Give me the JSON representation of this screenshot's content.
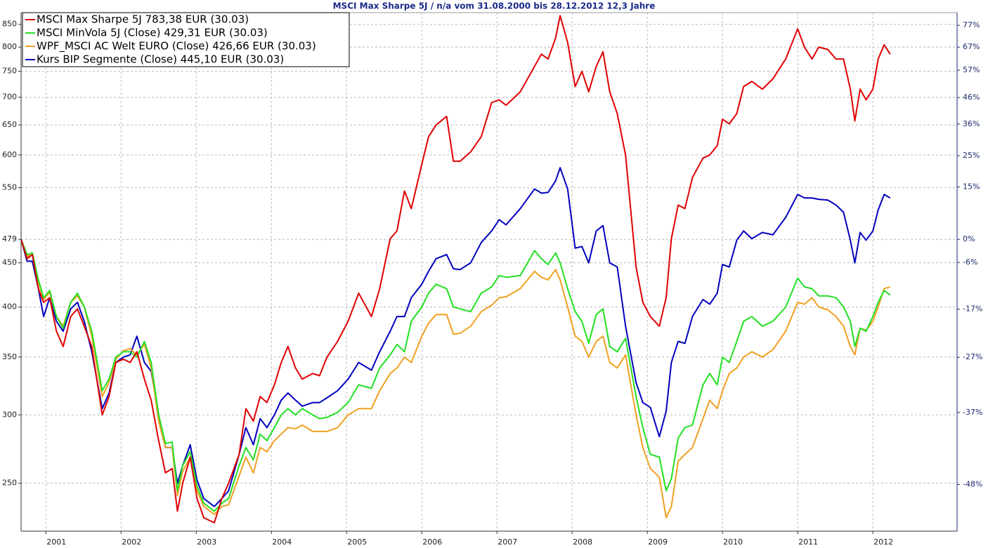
{
  "chart_data": {
    "type": "line",
    "title": "MSCI Max Sharpe 5J / n/a vom 31.08.2000 bis 28.12.2012 12,3 Jahre",
    "log_scale": true,
    "grid": true,
    "legend": "upper left",
    "xlim": [
      2000.67,
      2013.12
    ],
    "xticks": [
      2001,
      2002,
      2003,
      2004,
      2005,
      2006,
      2007,
      2008,
      2009,
      2010,
      2011,
      2012
    ],
    "ylim": [
      220,
      877
    ],
    "yticks": [
      250,
      300,
      350,
      400,
      450,
      479,
      550,
      600,
      650,
      700,
      750,
      800,
      850
    ],
    "y2lim": [
      -54.1,
      83.1
    ],
    "y2ticks": [
      {
        "value": -48,
        "label": "-48%"
      },
      {
        "value": -37,
        "label": "-37%"
      },
      {
        "value": -27,
        "label": "-27%"
      },
      {
        "value": -17,
        "label": "-17%"
      },
      {
        "value": -6,
        "label": "-6%"
      },
      {
        "value": 0,
        "label": "0%"
      },
      {
        "value": 15,
        "label": "15%"
      },
      {
        "value": 25,
        "label": "25%"
      },
      {
        "value": 36,
        "label": "36%"
      },
      {
        "value": 46,
        "label": "46%"
      },
      {
        "value": 57,
        "label": "57%"
      },
      {
        "value": 67,
        "label": "67%"
      },
      {
        "value": 77,
        "label": "77%"
      }
    ],
    "x": [
      2000.67,
      2000.75,
      2000.82,
      2000.9,
      2000.97,
      2001.05,
      2001.14,
      2001.23,
      2001.33,
      2001.42,
      2001.51,
      2001.61,
      2001.75,
      2001.84,
      2001.93,
      2002.03,
      2002.12,
      2002.21,
      2002.31,
      2002.4,
      2002.5,
      2002.59,
      2002.68,
      2002.75,
      2002.82,
      2002.92,
      2003.01,
      2003.1,
      2003.24,
      2003.34,
      2003.43,
      2003.57,
      2003.66,
      2003.76,
      2003.85,
      2003.94,
      2004.04,
      2004.13,
      2004.22,
      2004.32,
      2004.41,
      2004.55,
      2004.64,
      2004.74,
      2004.88,
      2005.02,
      2005.16,
      2005.33,
      2005.44,
      2005.58,
      2005.67,
      2005.77,
      2005.86,
      2006.0,
      2006.09,
      2006.19,
      2006.33,
      2006.42,
      2006.51,
      2006.65,
      2006.79,
      2006.93,
      2007.03,
      2007.12,
      2007.31,
      2007.5,
      2007.59,
      2007.68,
      2007.78,
      2007.84,
      2007.94,
      2008.04,
      2008.13,
      2008.22,
      2008.32,
      2008.41,
      2008.5,
      2008.6,
      2008.71,
      2008.85,
      2008.94,
      2009.04,
      2009.16,
      2009.25,
      2009.32,
      2009.41,
      2009.5,
      2009.6,
      2009.74,
      2009.83,
      2009.93,
      2010.0,
      2010.09,
      2010.19,
      2010.28,
      2010.39,
      2010.53,
      2010.67,
      2010.84,
      2011.0,
      2011.09,
      2011.19,
      2011.28,
      2011.4,
      2011.51,
      2011.61,
      2011.7,
      2011.76,
      2011.83,
      2011.91,
      2012.0,
      2012.07,
      2012.15,
      2012.23
    ],
    "series": [
      {
        "name": "MSCI Max Sharpe 5J 783,38 EUR (30.03)",
        "color": "#e00000",
        "values": [
          479,
          455,
          460,
          420,
          405,
          410,
          375,
          360,
          390,
          398,
          380,
          360,
          300,
          315,
          345,
          348,
          345,
          355,
          330,
          312,
          280,
          257,
          260,
          232,
          250,
          268,
          240,
          228,
          225,
          240,
          250,
          270,
          305,
          295,
          315,
          310,
          325,
          345,
          360,
          340,
          330,
          335,
          333,
          350,
          365,
          385,
          415,
          390,
          420,
          480,
          490,
          545,
          520,
          585,
          630,
          650,
          665,
          590,
          590,
          605,
          630,
          690,
          695,
          685,
          710,
          760,
          785,
          775,
          820,
          870,
          810,
          720,
          750,
          710,
          760,
          790,
          710,
          670,
          600,
          445,
          405,
          390,
          380,
          410,
          480,
          525,
          520,
          565,
          595,
          600,
          615,
          660,
          652,
          670,
          720,
          730,
          715,
          735,
          775,
          840,
          800,
          775,
          800,
          795,
          775,
          775,
          715,
          657,
          715,
          695,
          715,
          775,
          805,
          785
        ]
      },
      {
        "name": "MSCI MinVola 5J (Close) 429,31 EUR (30.03)",
        "color": "#22e022",
        "values": [
          479,
          460,
          462,
          430,
          410,
          418,
          390,
          378,
          405,
          415,
          400,
          375,
          320,
          330,
          350,
          355,
          355,
          350,
          365,
          345,
          300,
          278,
          279,
          245,
          262,
          272,
          248,
          237,
          232,
          237,
          240,
          262,
          275,
          266,
          285,
          280,
          290,
          300,
          305,
          300,
          305,
          300,
          297,
          298,
          302,
          310,
          325,
          322,
          340,
          352,
          362,
          355,
          385,
          400,
          415,
          425,
          420,
          400,
          398,
          395,
          415,
          422,
          435,
          433,
          435,
          465,
          455,
          448,
          462,
          450,
          420,
          395,
          385,
          363,
          392,
          398,
          360,
          355,
          368,
          315,
          290,
          270,
          268,
          245,
          253,
          282,
          290,
          292,
          325,
          335,
          325,
          350,
          345,
          365,
          385,
          390,
          380,
          385,
          400,
          432,
          422,
          420,
          412,
          412,
          410,
          400,
          385,
          360,
          378,
          375,
          390,
          405,
          418,
          413
        ]
      },
      {
        "name": "WPF_MSCI AC Welt EURO (Close) 426,66 EUR (30.03)",
        "color": "#f0a020",
        "values": [
          479,
          458,
          460,
          428,
          408,
          416,
          390,
          380,
          405,
          412,
          400,
          370,
          315,
          327,
          348,
          356,
          358,
          352,
          362,
          340,
          295,
          275,
          275,
          242,
          258,
          268,
          245,
          235,
          230,
          235,
          236,
          255,
          268,
          257,
          275,
          272,
          280,
          285,
          290,
          289,
          292,
          287,
          287,
          287,
          290,
          300,
          305,
          305,
          320,
          335,
          340,
          350,
          345,
          370,
          383,
          392,
          392,
          372,
          373,
          380,
          395,
          402,
          410,
          411,
          420,
          440,
          433,
          430,
          442,
          430,
          400,
          370,
          365,
          350,
          365,
          370,
          345,
          340,
          352,
          300,
          275,
          260,
          254,
          228,
          235,
          265,
          270,
          275,
          297,
          312,
          305,
          320,
          335,
          340,
          350,
          355,
          350,
          357,
          375,
          405,
          403,
          410,
          400,
          397,
          390,
          380,
          360,
          352,
          378,
          376,
          385,
          400,
          420,
          422
        ]
      },
      {
        "name": "Kurs BIP Segmente (Close) 445,10 EUR (30.03)",
        "color": "#0000c0",
        "values": [
          479,
          452,
          452,
          420,
          390,
          410,
          385,
          375,
          398,
          405,
          385,
          355,
          305,
          318,
          345,
          350,
          352,
          370,
          345,
          337,
          300,
          275,
          275,
          250,
          262,
          277,
          252,
          240,
          235,
          240,
          245,
          270,
          290,
          277,
          297,
          290,
          300,
          312,
          318,
          312,
          307,
          310,
          310,
          314,
          320,
          330,
          345,
          338,
          355,
          375,
          390,
          390,
          410,
          425,
          440,
          455,
          460,
          443,
          442,
          450,
          475,
          490,
          505,
          498,
          520,
          548,
          542,
          543,
          560,
          580,
          548,
          468,
          470,
          450,
          490,
          497,
          450,
          445,
          380,
          327,
          310,
          306,
          283,
          303,
          345,
          365,
          363,
          390,
          408,
          403,
          415,
          448,
          445,
          478,
          490,
          480,
          488,
          485,
          508,
          540,
          535,
          535,
          533,
          532,
          525,
          515,
          478,
          450,
          488,
          478,
          490,
          518,
          540,
          535
        ]
      }
    ]
  }
}
